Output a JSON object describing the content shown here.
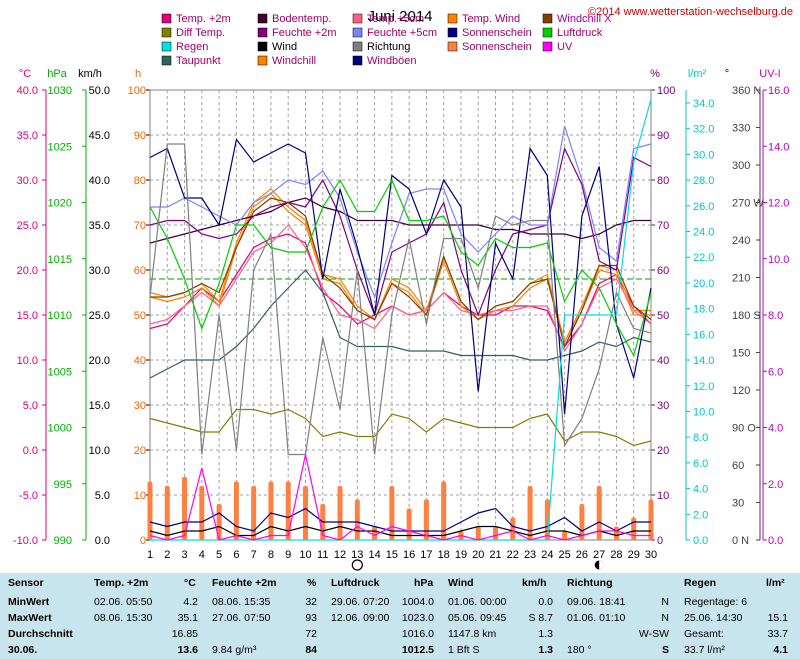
{
  "title": "Juni 2014",
  "copyright": "©2014 www.wetterstation-wechselburg.de",
  "legend": [
    {
      "label": "Temp. +2m",
      "color": "#e0007a"
    },
    {
      "label": "Bodentemp.",
      "color": "#400030"
    },
    {
      "label": "Temp.+5cm",
      "color": "#ff6080"
    },
    {
      "label": "Temp. Wind",
      "color": "#ff8000"
    },
    {
      "label": "Windchill X",
      "color": "#804000"
    },
    {
      "label": "Diff Temp.",
      "color": "#808000"
    },
    {
      "label": "Feuchte +2m",
      "color": "#800080"
    },
    {
      "label": "Feuchte +5cm",
      "color": "#8080ff"
    },
    {
      "label": "Sonnenschein",
      "color": "#000080"
    },
    {
      "label": "Luftdruck",
      "color": "#00d000"
    },
    {
      "label": "Regen",
      "color": "#00e0e0"
    },
    {
      "label": "Wind",
      "color": "#000000"
    },
    {
      "label": "Richtung",
      "color": "#808080"
    },
    {
      "label": "Sonnenschein",
      "color": "#ff8040"
    },
    {
      "label": "UV",
      "color": "#ff00ff"
    },
    {
      "label": "Taupunkt",
      "color": "#306060"
    },
    {
      "label": "Windchill",
      "color": "#ff8000"
    },
    {
      "label": "Windböen",
      "color": "#000080"
    }
  ],
  "axis_headers": {
    "temp": "°C",
    "hpa": "hPa",
    "kmh": "km/h",
    "h": "h",
    "pct": "%",
    "rain": "l/m²",
    "dir": "°",
    "uv": "UV-I"
  },
  "axes": {
    "temp": {
      "ticks": [
        "40.0",
        "35.0",
        "30.0",
        "25.0",
        "20.0",
        "15.0",
        "10.0",
        "5.0",
        "0.0",
        "-5.0",
        "-10.0"
      ],
      "color": "#e0007a"
    },
    "hpa": {
      "ticks": [
        "1030",
        "1025",
        "1020",
        "1015",
        "1010",
        "1005",
        "1000",
        "995",
        "990"
      ],
      "color": "#00b000"
    },
    "kmh": {
      "ticks": [
        "50.0",
        "45.0",
        "40.0",
        "35.0",
        "30.0",
        "25.0",
        "20.0",
        "15.0",
        "10.0",
        "5.0",
        "0.0"
      ],
      "color": "#000000"
    },
    "h": {
      "ticks": [
        "100",
        "90",
        "80",
        "70",
        "60",
        "50",
        "40",
        "30",
        "20",
        "10",
        "0"
      ],
      "color": "#ff6000"
    },
    "pct": {
      "ticks": [
        "100",
        "90",
        "80",
        "70",
        "60",
        "50",
        "40",
        "30",
        "20",
        "10",
        "0"
      ],
      "color": "#800080"
    },
    "rain": {
      "ticks": [
        "34.0",
        "32.0",
        "30.0",
        "28.0",
        "26.0",
        "24.0",
        "22.0",
        "20.0",
        "18.0",
        "16.0",
        "14.0",
        "12.0",
        "10.0",
        "8.0",
        "6.0",
        "4.0",
        "2.0",
        "0.0"
      ],
      "color": "#00c8c8"
    },
    "dir": {
      "ticks": [
        "360 N",
        "330",
        "300",
        "270 W",
        "240",
        "210",
        "180 S",
        "150",
        "120",
        "90 O",
        "60",
        "30",
        "0 N"
      ],
      "color": "#404040"
    },
    "uv": {
      "ticks": [
        "16.0",
        "14.0",
        "12.0",
        "10.0",
        "8.0",
        "6.0",
        "4.0",
        "2.0",
        "0.0"
      ],
      "color": "#c000c0"
    }
  },
  "chart_data": {
    "type": "line",
    "title": "Juni 2014",
    "x": [
      1,
      2,
      3,
      4,
      5,
      6,
      7,
      8,
      9,
      10,
      11,
      12,
      13,
      14,
      15,
      16,
      17,
      18,
      19,
      20,
      21,
      22,
      23,
      24,
      25,
      26,
      27,
      28,
      29,
      30
    ],
    "series": [
      {
        "name": "Temp. +2m",
        "axis": "h",
        "color": "#e0007a",
        "values": [
          47,
          48,
          52,
          56,
          53,
          59,
          65,
          67,
          68,
          66,
          55,
          52,
          48,
          50,
          52,
          50,
          51,
          55,
          52,
          50,
          50,
          52,
          52,
          51,
          43,
          48,
          57,
          59,
          52,
          48
        ]
      },
      {
        "name": "Temp. Wind",
        "axis": "h",
        "color": "#ff8000",
        "values": [
          55,
          54,
          55,
          57,
          53,
          66,
          75,
          78,
          74,
          71,
          59,
          58,
          52,
          49,
          58,
          56,
          51,
          63,
          53,
          49,
          52,
          53,
          57,
          59,
          44,
          52,
          61,
          60,
          51,
          51
        ]
      },
      {
        "name": "Windchill",
        "axis": "h",
        "color": "#ff8000",
        "values": [
          54,
          53,
          54,
          56,
          52,
          65,
          74,
          77,
          73,
          70,
          58,
          57,
          51,
          49,
          57,
          55,
          50,
          62,
          52,
          49,
          51,
          52,
          56,
          58,
          44,
          51,
          60,
          59,
          50,
          50
        ]
      },
      {
        "name": "Windchill X",
        "axis": "h",
        "color": "#804000",
        "values": [
          54,
          54,
          55,
          57,
          55,
          65,
          73,
          76,
          75,
          72,
          59,
          56,
          51,
          49,
          57,
          54,
          50,
          63,
          53,
          49,
          52,
          53,
          57,
          58,
          43,
          51,
          61,
          61,
          52,
          49
        ]
      },
      {
        "name": "Temp.+5cm",
        "axis": "h",
        "color": "#ff6080",
        "values": [
          48,
          49,
          52,
          55,
          52,
          58,
          64,
          66,
          70,
          65,
          56,
          50,
          49,
          47,
          52,
          50,
          51,
          55,
          51,
          50,
          51,
          51,
          52,
          52,
          42,
          48,
          56,
          58,
          51,
          48
        ]
      },
      {
        "name": "Bodentemp.",
        "axis": "h",
        "color": "#400030",
        "values": [
          66,
          67,
          68,
          69,
          70,
          71,
          72,
          73,
          75,
          76,
          74,
          73,
          71,
          71,
          71,
          70,
          70,
          70,
          70,
          70,
          69,
          69,
          68,
          68,
          68,
          67,
          68,
          70,
          71,
          71
        ]
      },
      {
        "name": "Taupunkt",
        "axis": "h",
        "color": "#306060",
        "values": [
          36,
          38,
          40,
          40,
          40,
          43,
          47,
          52,
          56,
          60,
          55,
          45,
          43,
          43,
          43,
          42,
          42,
          42,
          41,
          41,
          41,
          41,
          40,
          40,
          41,
          42,
          44,
          43,
          45,
          44
        ]
      },
      {
        "name": "Diff Temp.",
        "axis": "h",
        "color": "#808000",
        "values": [
          27,
          26,
          25,
          24,
          24,
          29,
          29,
          28,
          29,
          27,
          23,
          24,
          23,
          23,
          28,
          27,
          24,
          27,
          26,
          25,
          25,
          25,
          27,
          28,
          22,
          24,
          24,
          23,
          21,
          22
        ]
      },
      {
        "name": "Feuchte +2m",
        "axis": "pct",
        "color": "#800080",
        "values": [
          70,
          71,
          71,
          68,
          67,
          68,
          72,
          74,
          75,
          74,
          80,
          72,
          60,
          50,
          64,
          66,
          68,
          75,
          60,
          50,
          60,
          68,
          69,
          70,
          87,
          79,
          62,
          60,
          85,
          83
        ]
      },
      {
        "name": "Feuchte +5cm",
        "axis": "pct",
        "color": "#8080ff",
        "values": [
          74,
          74,
          76,
          74,
          72,
          70,
          75,
          77,
          80,
          79,
          82,
          76,
          64,
          54,
          66,
          77,
          78,
          78,
          68,
          64,
          68,
          72,
          70,
          70,
          92,
          80,
          65,
          62,
          87,
          88
        ]
      },
      {
        "name": "Sonnenschein",
        "axis": "pct",
        "color": "#000080",
        "values": [
          85,
          87,
          76,
          76,
          70,
          89,
          84,
          86,
          88,
          86,
          58,
          78,
          65,
          50,
          81,
          78,
          68,
          80,
          74,
          33,
          66,
          58,
          87,
          81,
          28,
          72,
          83,
          48,
          36,
          56
        ]
      },
      {
        "name": "Luftdruck",
        "axis": "pct",
        "color": "#00d000",
        "values": [
          74,
          67,
          58,
          47,
          57,
          70,
          70,
          65,
          64,
          64,
          74,
          80,
          73,
          73,
          80,
          71,
          71,
          72,
          64,
          61,
          67,
          65,
          65,
          66,
          53,
          60,
          56,
          48,
          41,
          55
        ]
      },
      {
        "name": "Richtung",
        "axis": "pct",
        "color": "#808080",
        "values": [
          54,
          88,
          88,
          19,
          50,
          20,
          60,
          68,
          19,
          19,
          45,
          29,
          60,
          19,
          50,
          67,
          48,
          67,
          67,
          56,
          72,
          70,
          71,
          71,
          21,
          27,
          38,
          55,
          47,
          46
        ]
      },
      {
        "name": "Wind",
        "axis": "h",
        "color": "#000000",
        "values": [
          2,
          1,
          2,
          2,
          3,
          1,
          1,
          3,
          2,
          3,
          2,
          3,
          2,
          2,
          1,
          1,
          1,
          1,
          2,
          3,
          3,
          2,
          1,
          2,
          2,
          1,
          2,
          1,
          2,
          2
        ]
      },
      {
        "name": "Windböen",
        "axis": "h",
        "color": "#000080",
        "values": [
          4,
          3,
          4,
          4,
          6,
          3,
          2,
          6,
          5,
          7,
          4,
          4,
          4,
          3,
          2,
          2,
          2,
          2,
          4,
          6,
          7,
          3,
          2,
          3,
          5,
          2,
          4,
          2,
          4,
          4
        ]
      },
      {
        "name": "Regen",
        "axis": "h",
        "color": "#00e0e0",
        "values": [
          0,
          0,
          0,
          0,
          0,
          0,
          0,
          0,
          0,
          0,
          0,
          0,
          0,
          0,
          0,
          0,
          0,
          0,
          0,
          0,
          0,
          0,
          0,
          0,
          50,
          50,
          50,
          50,
          84,
          98
        ]
      },
      {
        "name": "UV",
        "axis": "h",
        "color": "#ff00ff",
        "values": [
          1,
          0,
          1,
          16,
          0,
          1,
          0,
          1,
          1,
          19,
          1,
          0,
          3,
          1,
          3,
          2,
          1,
          0,
          1,
          0,
          1,
          2,
          0,
          1,
          0,
          1,
          2,
          2,
          1,
          1
        ]
      }
    ],
    "bars": {
      "name": "Sonnenschein",
      "axis": "h",
      "color": "#ff8040",
      "values": [
        13,
        12,
        14,
        12,
        8,
        13,
        12,
        13,
        13,
        12,
        8,
        12,
        9,
        3,
        12,
        7,
        9,
        13,
        2,
        3,
        3,
        5,
        12,
        9,
        2,
        8,
        12,
        3,
        5,
        9
      ]
    },
    "dashed_reference": {
      "axis": "h",
      "value": 58
    }
  },
  "marks": {
    "new_moon_day": 13,
    "half_moon_day": 27
  },
  "table": {
    "headers": {
      "sensor": "Sensor",
      "temp": "Temp. +2m",
      "temp_u": "°C",
      "feuchte": "Feuchte +2m",
      "feuchte_u": "%",
      "luft": "Luftdruck",
      "luft_u": "hPa",
      "wind": "Wind",
      "wind_u": "km/h",
      "richtung": "Richtung",
      "regen": "Regen",
      "regen_u": "l/m²"
    },
    "rows": [
      {
        "label": "MinWert",
        "t_time": "02.06.  05:50",
        "t_val": "4.2",
        "f_time": "08.06.  15:35",
        "f_val": "32",
        "l_time": "29.06.  07:20",
        "l_val": "1004.0",
        "w_time": "01.06.  00:00",
        "w_val": "0.0",
        "r_time": "09.06.  18:41",
        "r_val": "N",
        "g_label": "Regentage: 6",
        "g_val": ""
      },
      {
        "label": "MaxWert",
        "t_time": "08.06.  15:30",
        "t_val": "35.1",
        "f_time": "27.06.  07:50",
        "f_val": "93",
        "l_time": "12.06.  09:00",
        "l_val": "1023.0",
        "w_time": "05.06.  09:45",
        "w_val": "S  8.7",
        "r_time": "01.06.  01:10",
        "r_val": "N",
        "g_label": "25.06.  14:30",
        "g_val": "15.1"
      },
      {
        "label": "Durchschnitt",
        "t_time": "",
        "t_val": "16.85",
        "f_time": "",
        "f_val": "72",
        "l_time": "",
        "l_val": "1016.0",
        "w_time": "1147.8 km",
        "w_val": "1.3",
        "r_time": "",
        "r_val": "W-SW",
        "g_label": "Gesamt:",
        "g_val": "33.7"
      },
      {
        "label": "30.06.",
        "t_time": "",
        "t_val": "13.6",
        "f_time": "9.84 g/m³",
        "f_val": "84",
        "l_time": "",
        "l_val": "1012.5",
        "w_time": "1 Bft S",
        "w_val": "1.3",
        "r_time": "180 °",
        "r_val": "S",
        "g_label": "33.7 l/m²",
        "g_val": "4.1"
      }
    ]
  }
}
